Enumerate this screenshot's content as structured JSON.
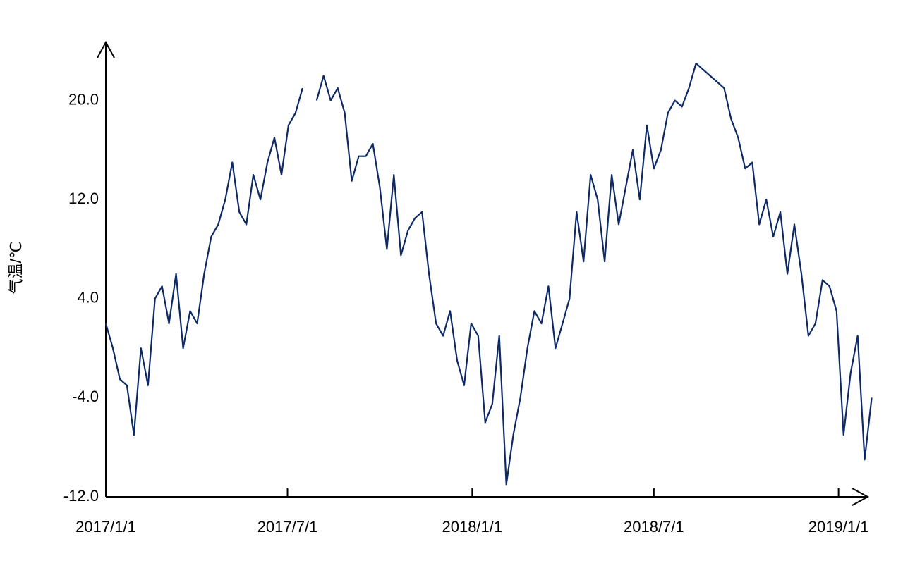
{
  "chart_data": {
    "type": "line",
    "y_label": "气温/℃",
    "x": [
      "2017/1/1",
      "2017/1/8",
      "2017/1/15",
      "2017/1/22",
      "2017/1/29",
      "2017/2/5",
      "2017/2/12",
      "2017/2/19",
      "2017/2/26",
      "2017/3/5",
      "2017/3/12",
      "2017/3/19",
      "2017/3/26",
      "2017/4/2",
      "2017/4/9",
      "2017/4/16",
      "2017/4/23",
      "2017/4/30",
      "2017/5/7",
      "2017/5/14",
      "2017/5/21",
      "2017/5/28",
      "2017/6/4",
      "2017/6/11",
      "2017/6/18",
      "2017/6/25",
      "2017/7/2",
      "2017/7/9",
      "2017/7/16",
      "2017/7/23",
      "2017/7/30",
      "2017/8/6",
      "2017/8/13",
      "2017/8/20",
      "2017/8/27",
      "2017/9/3",
      "2017/9/10",
      "2017/9/17",
      "2017/9/24",
      "2017/10/1",
      "2017/10/8",
      "2017/10/15",
      "2017/10/22",
      "2017/10/29",
      "2017/11/5",
      "2017/11/12",
      "2017/11/19",
      "2017/11/26",
      "2017/12/3",
      "2017/12/10",
      "2017/12/17",
      "2017/12/24",
      "2017/12/31",
      "2018/1/7",
      "2018/1/14",
      "2018/1/21",
      "2018/1/28",
      "2018/2/4",
      "2018/2/11",
      "2018/2/18",
      "2018/2/25",
      "2018/3/4",
      "2018/3/11",
      "2018/3/18",
      "2018/3/25",
      "2018/4/1",
      "2018/4/8",
      "2018/4/15",
      "2018/4/22",
      "2018/4/29",
      "2018/5/6",
      "2018/5/13",
      "2018/5/20",
      "2018/5/27",
      "2018/6/3",
      "2018/6/10",
      "2018/6/17",
      "2018/6/24",
      "2018/7/1",
      "2018/7/8",
      "2018/7/15",
      "2018/7/22",
      "2018/7/29",
      "2018/8/5",
      "2018/8/12",
      "2018/8/19",
      "2018/8/26",
      "2018/9/2",
      "2018/9/9",
      "2018/9/16",
      "2018/9/23",
      "2018/9/30",
      "2018/10/7",
      "2018/10/14",
      "2018/10/21",
      "2018/10/28",
      "2018/11/4",
      "2018/11/11",
      "2018/11/18",
      "2018/11/25",
      "2018/12/2",
      "2018/12/9",
      "2018/12/16",
      "2018/12/23",
      "2018/12/30",
      "2019/1/6",
      "2019/1/13",
      "2019/1/20",
      "2019/1/27",
      "2019/2/3"
    ],
    "series": [
      {
        "color": "#0d2a66",
        "values": [
          2,
          0,
          -2.5,
          -3,
          -7,
          0,
          -3,
          4,
          5,
          2,
          6,
          0,
          3,
          2,
          6,
          9,
          10,
          12,
          15,
          11,
          10,
          14,
          12,
          15,
          17,
          14,
          18,
          19,
          21,
          null,
          20,
          22,
          20,
          21,
          19,
          13.5,
          15.5,
          15.5,
          16.5,
          13,
          8,
          14,
          7.5,
          9.5,
          10.5,
          11,
          6,
          2,
          1,
          3,
          -1,
          -3,
          2,
          1,
          -6,
          -4.5,
          1,
          -11,
          -7,
          -4,
          0,
          3,
          2,
          5,
          0,
          2,
          4,
          11,
          7,
          14,
          12,
          7,
          14,
          10,
          13,
          16,
          12,
          18,
          14.5,
          16,
          19,
          20,
          19.5,
          21,
          23,
          22.5,
          22,
          21.5,
          21,
          18.5,
          17,
          14.5,
          15,
          10,
          12,
          9,
          11,
          6,
          10,
          6,
          1,
          2,
          5.5,
          5,
          3,
          -7,
          -2,
          1,
          -9,
          -4
        ]
      }
    ],
    "xlim": [
      "2017/1/1",
      "2019/2/4"
    ],
    "xticks": [
      "2017/1/1",
      "2017/7/1",
      "2018/1/1",
      "2018/7/1",
      "2019/1/1"
    ],
    "ylim": [
      -12,
      24.7
    ],
    "yticks": [
      {
        "value": -12,
        "label": "-12.0"
      },
      {
        "value": -4,
        "label": "-4.0"
      },
      {
        "value": 4,
        "label": "4.0"
      },
      {
        "value": 12,
        "label": "12.0"
      },
      {
        "value": 20,
        "label": "20.0"
      }
    ]
  }
}
